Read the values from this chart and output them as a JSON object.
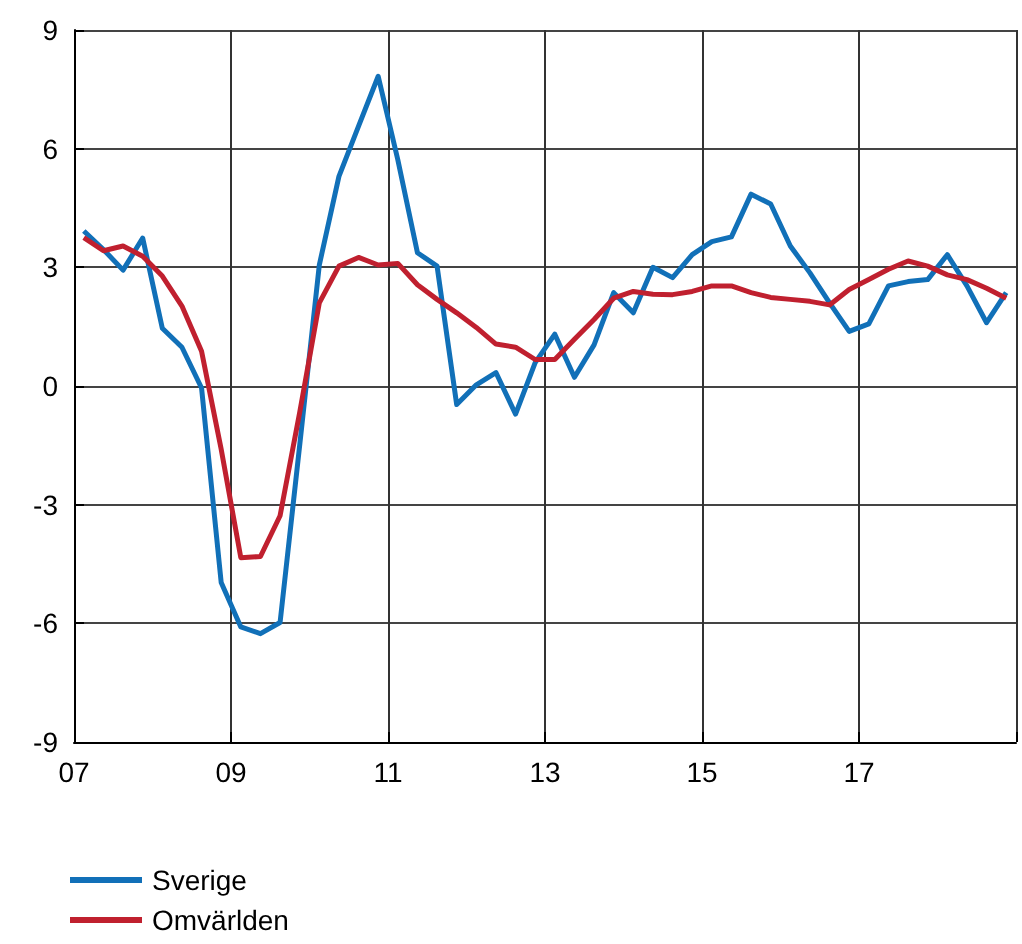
{
  "chart_data": {
    "type": "line",
    "x": [
      2007.125,
      2007.375,
      2007.625,
      2007.875,
      2008.125,
      2008.375,
      2008.625,
      2008.875,
      2009.125,
      2009.375,
      2009.625,
      2009.875,
      2010.125,
      2010.375,
      2010.625,
      2010.875,
      2011.125,
      2011.375,
      2011.625,
      2011.875,
      2012.125,
      2012.375,
      2012.625,
      2012.875,
      2013.125,
      2013.375,
      2013.625,
      2013.875,
      2014.125,
      2014.375,
      2014.625,
      2014.875,
      2015.125,
      2015.375,
      2015.625,
      2015.875,
      2016.125,
      2016.375,
      2016.625,
      2016.875,
      2017.125,
      2017.375,
      2017.625,
      2017.875,
      2018.125,
      2018.375,
      2018.625,
      2018.875
    ],
    "series": [
      {
        "name": "Sverige",
        "color": "#1170b8",
        "values": [
          3.92,
          3.45,
          2.93,
          3.74,
          1.46,
          0.98,
          -0.05,
          -4.97,
          -6.09,
          -6.26,
          -5.98,
          -1.5,
          3.06,
          5.3,
          6.57,
          7.83,
          5.72,
          3.37,
          3.03,
          -0.47,
          0.03,
          0.34,
          -0.71,
          0.59,
          1.31,
          0.22,
          1.04,
          2.36,
          1.85,
          3.0,
          2.74,
          3.32,
          3.65,
          3.77,
          4.85,
          4.6,
          3.54,
          2.86,
          2.1,
          1.38,
          1.57,
          2.53,
          2.64,
          2.69,
          3.32,
          2.53,
          1.6,
          2.36
        ]
      },
      {
        "name": "Omvärlden",
        "color": "#c0202f",
        "values": [
          3.75,
          3.42,
          3.54,
          3.28,
          2.78,
          2.02,
          0.88,
          -1.6,
          -4.34,
          -4.31,
          -3.28,
          -0.67,
          2.1,
          3.03,
          3.25,
          3.06,
          3.1,
          2.56,
          2.19,
          1.85,
          1.48,
          1.06,
          0.98,
          0.67,
          0.67,
          1.18,
          1.68,
          2.22,
          2.39,
          2.32,
          2.31,
          2.39,
          2.53,
          2.53,
          2.36,
          2.24,
          2.19,
          2.14,
          2.05,
          2.44,
          2.69,
          2.95,
          3.16,
          3.03,
          2.81,
          2.69,
          2.47,
          2.22
        ]
      }
    ],
    "xlim": [
      2007,
      2019
    ],
    "xticks": [
      {
        "value": 2007,
        "label": "07"
      },
      {
        "value": 2009,
        "label": "09"
      },
      {
        "value": 2011,
        "label": "11"
      },
      {
        "value": 2013,
        "label": "13"
      },
      {
        "value": 2015,
        "label": "15"
      },
      {
        "value": 2017,
        "label": "17"
      },
      {
        "value": 2019,
        "label": null
      }
    ],
    "ylim": [
      -9,
      9
    ],
    "yticks": [
      -9,
      -6,
      -3,
      0,
      3,
      6,
      9
    ],
    "grid": true,
    "legend": "bottom left",
    "marker": "none",
    "line_style": "solid"
  }
}
